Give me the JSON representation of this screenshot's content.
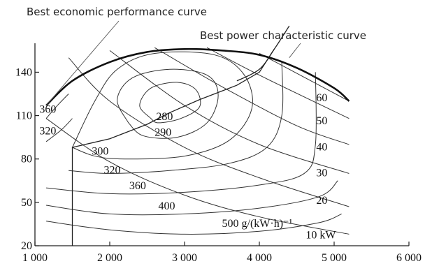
{
  "captions": {
    "economic_curve": "Best economic performance curve",
    "power_curve": "Best power characteristic curve"
  },
  "chart_data": {
    "type": "line",
    "xlim": [
      1000,
      6000
    ],
    "ylim": [
      20,
      160
    ],
    "x_ticks": [
      {
        "value": 1000,
        "label": "1 000"
      },
      {
        "value": 2000,
        "label": "2 000"
      },
      {
        "value": 3000,
        "label": "3 000"
      },
      {
        "value": 4000,
        "label": "4 000"
      },
      {
        "value": 5000,
        "label": "5 000"
      },
      {
        "value": 6000,
        "label": "6 000"
      }
    ],
    "y_ticks": [
      {
        "value": 20,
        "label": "20"
      },
      {
        "value": 50,
        "label": "50"
      },
      {
        "value": 80,
        "label": "80"
      },
      {
        "value": 110,
        "label": "110"
      },
      {
        "value": 140,
        "label": "140"
      }
    ],
    "full_load_curve": [
      [
        1150,
        117
      ],
      [
        1500,
        134
      ],
      [
        2000,
        147
      ],
      [
        2500,
        154
      ],
      [
        3000,
        156
      ],
      [
        3500,
        155
      ],
      [
        4000,
        152
      ],
      [
        4500,
        143
      ],
      [
        5000,
        129
      ],
      [
        5200,
        120
      ]
    ],
    "fuel_consumption_contours": [
      {
        "label": "280",
        "unit": "",
        "points": [
          [
            2550,
            108
          ],
          [
            2400,
            117
          ],
          [
            2550,
            129
          ],
          [
            2900,
            133
          ],
          [
            3150,
            128
          ],
          [
            3200,
            116
          ],
          [
            2950,
            108
          ],
          [
            2650,
            105
          ],
          [
            2550,
            108
          ]
        ],
        "label_at": [
          2620,
          107
        ]
      },
      {
        "label": "290",
        "unit": "",
        "points": [
          [
            2250,
            105
          ],
          [
            2100,
            121
          ],
          [
            2300,
            136
          ],
          [
            2800,
            142
          ],
          [
            3300,
            138
          ],
          [
            3450,
            124
          ],
          [
            3300,
            105
          ],
          [
            2900,
            95
          ],
          [
            2450,
            96
          ],
          [
            2250,
            105
          ]
        ],
        "label_at": [
          2600,
          96
        ]
      },
      {
        "label": "300",
        "unit": "",
        "points": [
          [
            1500,
            88
          ],
          [
            1800,
            120
          ],
          [
            2100,
            142
          ],
          [
            2600,
            153
          ],
          [
            3400,
            152
          ],
          [
            3800,
            138
          ],
          [
            3900,
            115
          ],
          [
            3600,
            93
          ],
          [
            3000,
            82
          ],
          [
            2200,
            80
          ],
          [
            1800,
            82
          ],
          [
            1500,
            88
          ]
        ],
        "label_at": [
          1760,
          83
        ]
      },
      {
        "label": "320",
        "unit": "",
        "points": [
          [
            1450,
            72
          ],
          [
            2000,
            70
          ],
          [
            2800,
            72
          ],
          [
            3600,
            77
          ],
          [
            4100,
            88
          ],
          [
            4300,
            110
          ],
          [
            4300,
            147
          ]
        ],
        "label_at": [
          1920,
          70
        ]
      },
      {
        "label": "360",
        "unit": "",
        "points": [
          [
            1150,
            60
          ],
          [
            2000,
            56
          ],
          [
            3000,
            57
          ],
          [
            4000,
            62
          ],
          [
            4600,
            70
          ],
          [
            4750,
            90
          ],
          [
            4750,
            140
          ]
        ],
        "label_at": [
          2260,
          59
        ]
      },
      {
        "label": "400",
        "unit": "",
        "points": [
          [
            1150,
            48
          ],
          [
            2000,
            42
          ],
          [
            3000,
            42
          ],
          [
            4000,
            46
          ],
          [
            4800,
            54
          ],
          [
            5050,
            65
          ]
        ],
        "label_at": [
          2650,
          45
        ]
      },
      {
        "label": "500",
        "unit": "g/(kW·h)⁻¹",
        "points": [
          [
            1150,
            37
          ],
          [
            2000,
            31
          ],
          [
            3000,
            28
          ],
          [
            4000,
            30
          ],
          [
            4800,
            36
          ],
          [
            5100,
            42
          ]
        ],
        "label_at": [
          3500,
          33
        ]
      },
      {
        "label": "360",
        "unit": "",
        "points": [
          [
            1150,
            108
          ],
          [
            1300,
            117
          ],
          [
            1450,
            125
          ]
        ],
        "label_at": [
          1060,
          112
        ]
      },
      {
        "label": "320",
        "unit": "",
        "points": [
          [
            1150,
            92
          ],
          [
            1350,
            100
          ],
          [
            1500,
            108
          ]
        ],
        "label_at": [
          1060,
          97
        ]
      }
    ],
    "power_curves": [
      {
        "label": "10 kW",
        "points": [
          [
            1150,
            108
          ],
          [
            2000,
            78
          ],
          [
            3000,
            55
          ],
          [
            4000,
            40
          ],
          [
            5200,
            28
          ]
        ],
        "label_at": [
          4620,
          25
        ]
      },
      {
        "label": "20",
        "points": [
          [
            1450,
            150
          ],
          [
            2000,
            120
          ],
          [
            3000,
            88
          ],
          [
            4000,
            67
          ],
          [
            5200,
            47
          ]
        ],
        "label_at": [
          4760,
          49
        ]
      },
      {
        "label": "30",
        "points": [
          [
            2000,
            155
          ],
          [
            3000,
            117
          ],
          [
            4000,
            90
          ],
          [
            5200,
            70
          ]
        ],
        "label_at": [
          4760,
          68
        ]
      },
      {
        "label": "40",
        "points": [
          [
            2600,
            157
          ],
          [
            3500,
            130
          ],
          [
            4500,
            103
          ],
          [
            5200,
            90
          ]
        ],
        "label_at": [
          4760,
          86
        ]
      },
      {
        "label": "50",
        "points": [
          [
            3300,
            157
          ],
          [
            4000,
            138
          ],
          [
            5200,
            108
          ]
        ],
        "label_at": [
          4760,
          104
        ]
      },
      {
        "label": "60",
        "points": [
          [
            4000,
            153
          ],
          [
            5200,
            120
          ]
        ],
        "label_at": [
          4760,
          120
        ]
      }
    ],
    "best_economic_curve": [
      [
        1500,
        20
      ],
      [
        1500,
        88
      ],
      [
        2000,
        94
      ],
      [
        2500,
        104
      ],
      [
        2800,
        112
      ],
      [
        3200,
        121
      ],
      [
        3700,
        131
      ],
      [
        4000,
        140
      ],
      [
        4200,
        156
      ]
    ],
    "best_power_curve": [
      [
        3700,
        134
      ],
      [
        4000,
        142
      ],
      [
        4200,
        156
      ],
      [
        4400,
        172
      ]
    ]
  }
}
